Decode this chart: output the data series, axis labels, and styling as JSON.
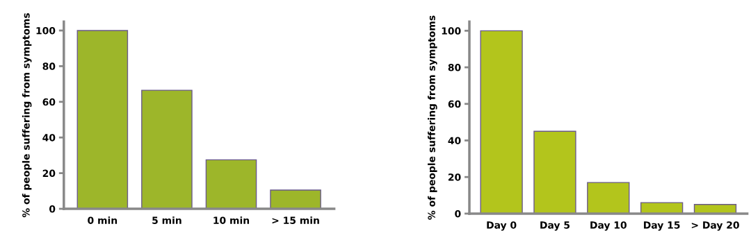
{
  "chart_data": [
    {
      "type": "bar",
      "ylabel": "% of people suffering from symptoms",
      "categories": [
        "0 min",
        "5 min",
        "10 min",
        "> 15 min"
      ],
      "values": [
        100,
        66.5,
        27.5,
        10.5
      ],
      "color": "#9db62a",
      "ylim": [
        0,
        105
      ],
      "yticks": [
        0,
        20,
        40,
        60,
        80,
        100
      ],
      "grid": false,
      "legend": false
    },
    {
      "type": "bar",
      "ylabel": "% of people suffering from symptoms",
      "categories": [
        "Day 0",
        "Day 5",
        "Day 10",
        "Day 15",
        "> Day 20"
      ],
      "values": [
        100,
        45,
        17,
        6,
        5
      ],
      "color": "#b3c51c",
      "ylim": [
        0,
        105
      ],
      "yticks": [
        0,
        20,
        40,
        60,
        80,
        100
      ],
      "grid": false,
      "legend": false
    }
  ]
}
